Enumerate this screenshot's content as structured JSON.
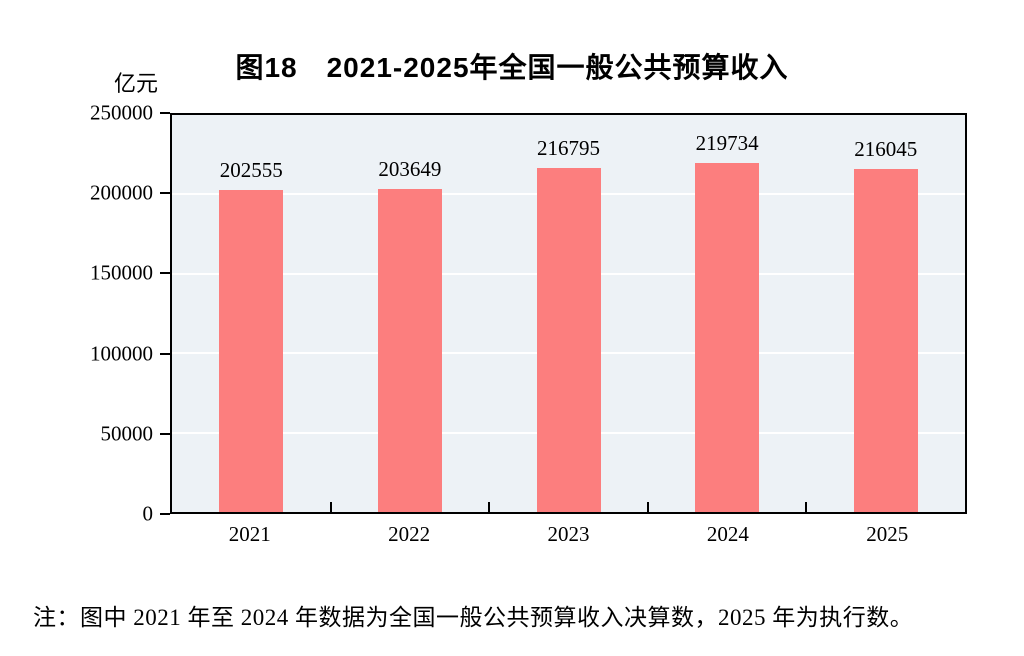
{
  "chart_data": {
    "type": "bar",
    "title": "图18　2021-2025年全国一般公共预算收入",
    "unit_label": "亿元",
    "categories": [
      "2021",
      "2022",
      "2023",
      "2024",
      "2025"
    ],
    "values": [
      202555,
      203649,
      216795,
      219734,
      216045
    ],
    "ylim": [
      0,
      250000
    ],
    "yticks": [
      0,
      50000,
      100000,
      150000,
      200000,
      250000
    ],
    "grid": "horizontal white gridlines at each y tick",
    "legend": "none",
    "note": "注：图中 2021 年至 2024 年数据为全国一般公共预算收入决算数，2025 年为执行数。",
    "colors": {
      "bar_fill": "#FC7E7E",
      "plot_background": "#EDF2F6",
      "gridline": "#FFFFFF",
      "axis_frame": "#000000",
      "text": "#000000",
      "page_background": "#FFFFFF"
    }
  }
}
